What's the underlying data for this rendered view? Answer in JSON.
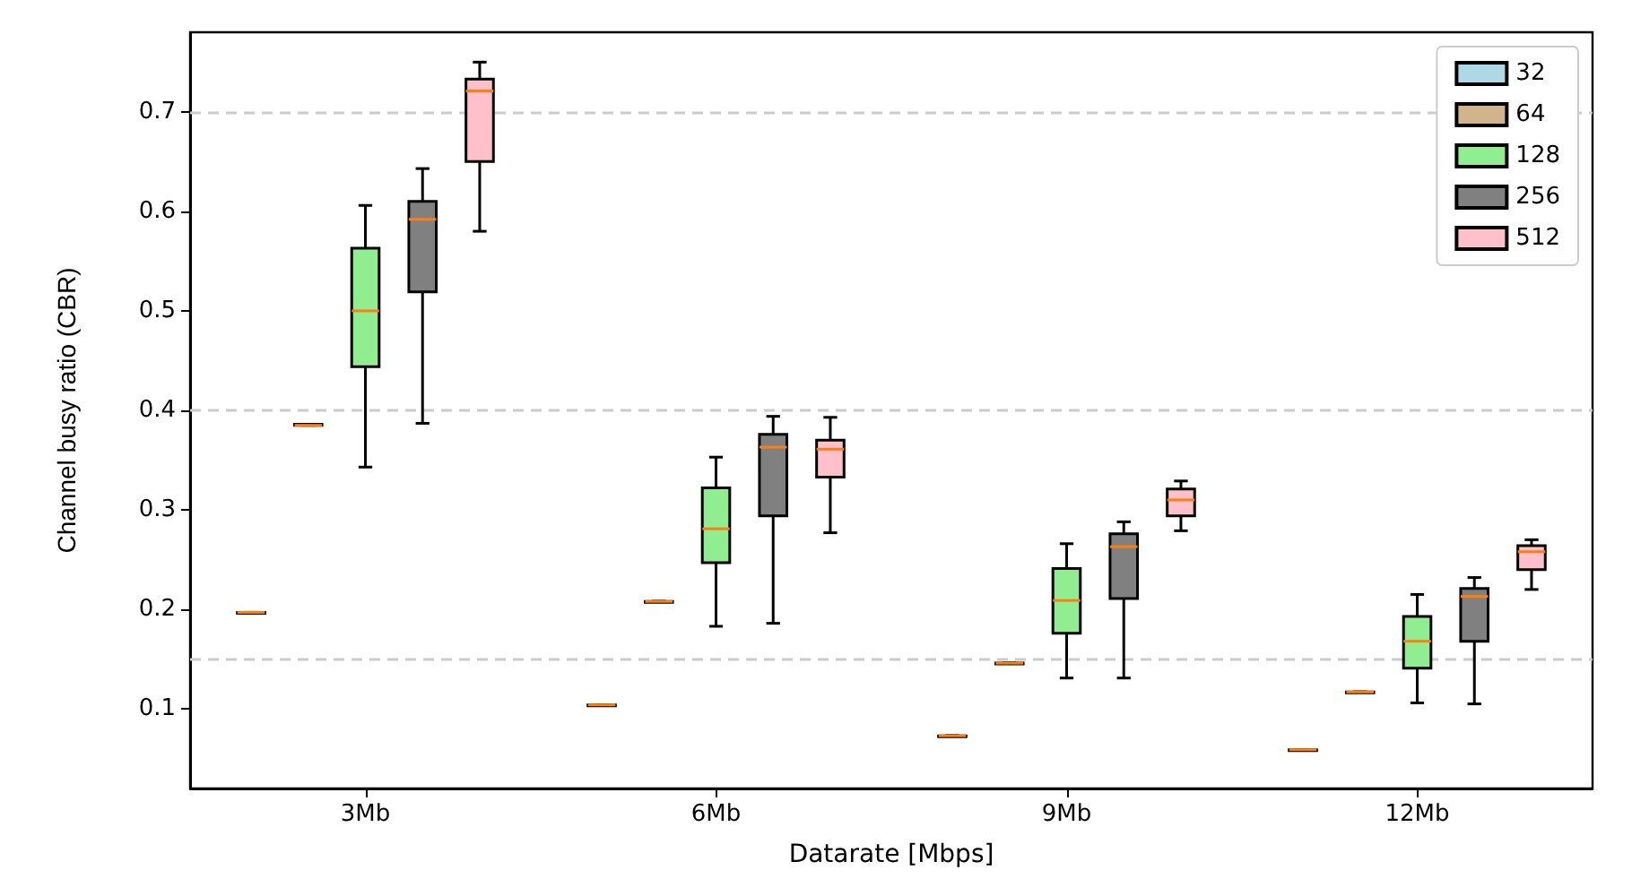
{
  "chart_data": {
    "type": "box",
    "xlabel": "Datarate [Mbps]",
    "ylabel": "Channel busy ratio (CBR)",
    "categories": [
      "3Mb",
      "6Mb",
      "9Mb",
      "12Mb"
    ],
    "ylim": [
      0.02,
      0.78
    ],
    "yticks": [
      0.1,
      0.2,
      0.3,
      0.4,
      0.5,
      0.6,
      0.7
    ],
    "legend": "top right",
    "grid": false,
    "ref_lines": [
      {
        "axis": "y",
        "value": 0.15,
        "color": "#cccccc",
        "line_style": "dashed"
      },
      {
        "axis": "y",
        "value": 0.4,
        "color": "#cccccc",
        "line_style": "dashed"
      },
      {
        "axis": "y",
        "value": 0.7,
        "color": "#cccccc",
        "line_style": "dashed"
      }
    ],
    "series": [
      {
        "name": "32",
        "color": "#add8e6",
        "boxes": [
          {
            "low": 0.197,
            "q1": 0.197,
            "median": 0.197,
            "q3": 0.197,
            "high": 0.197
          },
          {
            "low": 0.104,
            "q1": 0.104,
            "median": 0.104,
            "q3": 0.104,
            "high": 0.104
          },
          {
            "low": 0.073,
            "q1": 0.073,
            "median": 0.073,
            "q3": 0.073,
            "high": 0.073
          },
          {
            "low": 0.059,
            "q1": 0.059,
            "median": 0.059,
            "q3": 0.059,
            "high": 0.059
          }
        ]
      },
      {
        "name": "64",
        "color": "#d2b48c",
        "boxes": [
          {
            "low": 0.385,
            "q1": 0.385,
            "median": 0.385,
            "q3": 0.386,
            "high": 0.386
          },
          {
            "low": 0.208,
            "q1": 0.208,
            "median": 0.208,
            "q3": 0.208,
            "high": 0.208
          },
          {
            "low": 0.146,
            "q1": 0.146,
            "median": 0.146,
            "q3": 0.146,
            "high": 0.146
          },
          {
            "low": 0.117,
            "q1": 0.117,
            "median": 0.117,
            "q3": 0.117,
            "high": 0.117
          }
        ]
      },
      {
        "name": "128",
        "color": "#90ee90",
        "boxes": [
          {
            "low": 0.343,
            "q1": 0.444,
            "median": 0.5,
            "q3": 0.563,
            "high": 0.606
          },
          {
            "low": 0.183,
            "q1": 0.247,
            "median": 0.281,
            "q3": 0.322,
            "high": 0.353
          },
          {
            "low": 0.131,
            "q1": 0.176,
            "median": 0.209,
            "q3": 0.241,
            "high": 0.266
          },
          {
            "low": 0.106,
            "q1": 0.141,
            "median": 0.168,
            "q3": 0.193,
            "high": 0.215
          }
        ]
      },
      {
        "name": "256",
        "color": "#808080",
        "boxes": [
          {
            "low": 0.387,
            "q1": 0.519,
            "median": 0.592,
            "q3": 0.61,
            "high": 0.643
          },
          {
            "low": 0.186,
            "q1": 0.294,
            "median": 0.363,
            "q3": 0.376,
            "high": 0.394
          },
          {
            "low": 0.131,
            "q1": 0.211,
            "median": 0.263,
            "q3": 0.276,
            "high": 0.288
          },
          {
            "low": 0.105,
            "q1": 0.168,
            "median": 0.213,
            "q3": 0.221,
            "high": 0.232
          }
        ]
      },
      {
        "name": "512",
        "color": "#ffc0cb",
        "boxes": [
          {
            "low": 0.58,
            "q1": 0.65,
            "median": 0.721,
            "q3": 0.733,
            "high": 0.75
          },
          {
            "low": 0.277,
            "q1": 0.333,
            "median": 0.361,
            "q3": 0.37,
            "high": 0.393
          },
          {
            "low": 0.279,
            "q1": 0.294,
            "median": 0.31,
            "q3": 0.321,
            "high": 0.329
          },
          {
            "low": 0.22,
            "q1": 0.24,
            "median": 0.258,
            "q3": 0.264,
            "high": 0.27
          }
        ]
      }
    ]
  }
}
